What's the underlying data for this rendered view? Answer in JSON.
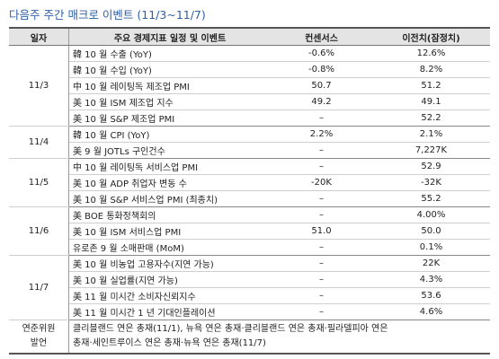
{
  "title": "다음주 주간 매크로 이벤트 (11/3~11/7)",
  "header": [
    "일자",
    "주요 경제지표 일정 및 이벤트",
    "컨센서스",
    "이전치(잠정치)"
  ],
  "groups": [
    {
      "date": "11/3",
      "rows": [
        [
          "韓 10 월 수출 (YoY)",
          "-0.6%",
          "12.6%"
        ],
        [
          "韓 10 월 수입 (YoY)",
          "-0.8%",
          "8.2%"
        ],
        [
          "中 10 월 레이팅독 제조업 PMI",
          "50.7",
          "51.2"
        ],
        [
          "美 10 월 ISM 제조업 지수",
          "49.2",
          "49.1"
        ],
        [
          "美 10 월 S&P 제조업 PMI",
          "–",
          "52.2"
        ]
      ]
    },
    {
      "date": "11/4",
      "rows": [
        [
          "韓 10 월 CPI (YoY)",
          "2.2%",
          "2.1%"
        ],
        [
          "美 9 월 JOTLs 구인건수",
          "–",
          "7,227K"
        ]
      ]
    },
    {
      "date": "11/5",
      "rows": [
        [
          "中 10 월 레이팅독 서비스업 PMI",
          "–",
          "52.9"
        ],
        [
          "美 10 월 ADP 취업자 변동 수",
          "-20K",
          "-32K"
        ],
        [
          "美 10 월 S&P 서비스업 PMI (최종치)",
          "–",
          "55.2"
        ]
      ]
    },
    {
      "date": "11/6",
      "rows": [
        [
          "美 BOE 통화정책회의",
          "–",
          "4.00%"
        ],
        [
          "美 10 월 ISM 서비스업 PMI",
          "51.0",
          "50.0"
        ],
        [
          "유로존 9 월 소매판매 (MoM)",
          "–",
          "0.1%"
        ]
      ]
    },
    {
      "date": "11/7",
      "rows": [
        [
          "美 10 월 비농업 고용자수(지연 가능)",
          "–",
          "22K"
        ],
        [
          "美 10 월 실업률(지연 가능)",
          "–",
          "4.3%"
        ],
        [
          "美 11 월 미시간 소비자신뢰지수",
          "–",
          "53.6"
        ],
        [
          "美 11 월 미시간 1 년 기대인플레이션",
          "–",
          "4.6%"
        ]
      ]
    }
  ],
  "footer": {
    "label": [
      "연준위원",
      "발언"
    ],
    "lines": [
      "클리블랜드 연은 총재(11/1), 뉴욕 연은 총재·클리블랜드 연은 총재·필라델피아 연은",
      "총재·세인트루이스 연은 총재·뉴욕 연은 총재(11/7)"
    ]
  }
}
